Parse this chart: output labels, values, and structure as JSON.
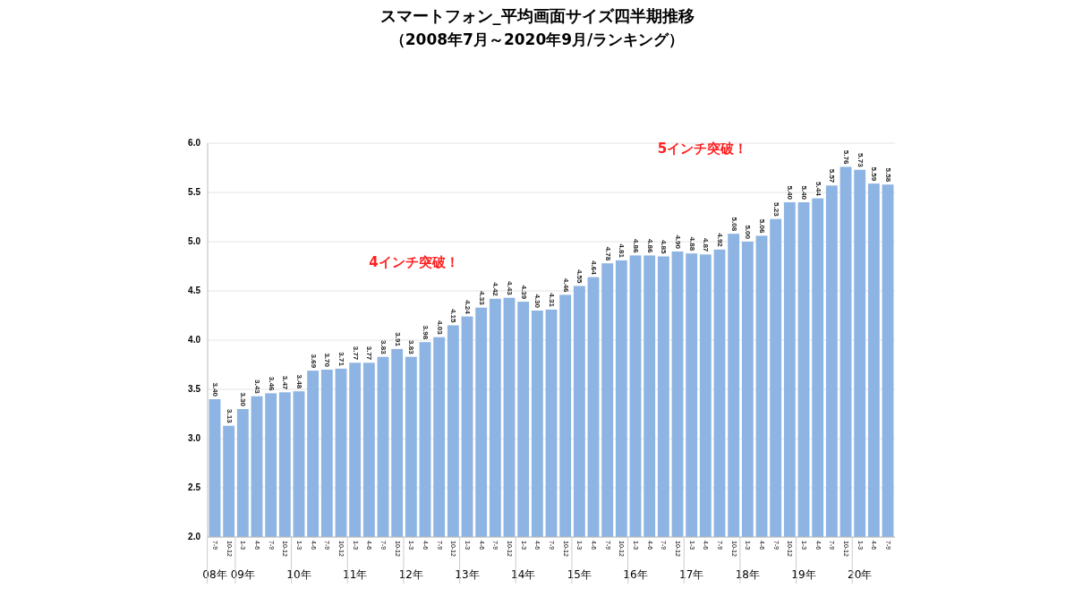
{
  "chart_data": {
    "type": "bar",
    "title": "スマートフォン_平均画面サイズ四半期推移",
    "subtitle": "（2008年7月～2020年9月/ランキング）",
    "categories": [
      "7-9\n08年",
      "10-12",
      "1-3\n09年",
      "4-6",
      "7-9",
      "10-12",
      "1-3\n10年",
      "4-6",
      "7-9",
      "10-12",
      "1-3\n11年",
      "4-6",
      "7-9",
      "10-12",
      "1-3\n12年",
      "4-6",
      "7-9",
      "10-12",
      "1-3\n13年",
      "4-6",
      "7-9",
      "10-12",
      "1-3\n14年",
      "4-6",
      "7-9",
      "10-12",
      "1-3\n15年",
      "4-6",
      "7-9",
      "10-12",
      "1-3\n16年",
      "4-6",
      "7-9",
      "10-12",
      "1-3\n17年",
      "4-6",
      "7-9",
      "10-12",
      "1-3\n18年",
      "4-6",
      "7-9",
      "10-12",
      "1-3\n19年",
      "4-6",
      "7-9",
      "10-12",
      "1-3\n20年",
      "4-6",
      "7-9"
    ],
    "values": [
      3.4,
      3.13,
      3.3,
      3.43,
      3.46,
      3.47,
      3.48,
      3.69,
      3.7,
      3.71,
      3.77,
      3.77,
      3.83,
      3.91,
      3.83,
      3.98,
      4.03,
      4.15,
      4.24,
      4.33,
      4.42,
      4.43,
      4.39,
      4.3,
      4.31,
      4.46,
      4.55,
      4.64,
      4.78,
      4.81,
      4.86,
      4.86,
      4.85,
      4.9,
      4.88,
      4.87,
      4.92,
      5.08,
      5.0,
      5.06,
      5.23,
      5.4,
      5.4,
      5.44,
      5.57,
      5.76,
      5.73,
      5.59,
      5.58
    ],
    "color": "#8db4e2",
    "ylim": [
      2,
      6
    ],
    "yticks": [
      {
        "value": 2,
        "label": "2.0"
      },
      {
        "value": 2.5,
        "label": "2.5"
      },
      {
        "value": 3,
        "label": "3.0"
      },
      {
        "value": 3.5,
        "label": "3.5"
      },
      {
        "value": 4,
        "label": "4.0"
      },
      {
        "value": 4.5,
        "label": "4.5"
      },
      {
        "value": 5,
        "label": "5.0"
      },
      {
        "value": 5.5,
        "label": "5.5"
      },
      {
        "value": 6,
        "label": "6.0"
      }
    ],
    "grid": "y",
    "value_labels": [
      "3.40",
      "3.13",
      "3.30",
      "3.43",
      "3.46",
      "3.47",
      "3.48",
      "3.69",
      "3.70",
      "3.71",
      "3.77",
      "3.77",
      "3.83",
      "3.91",
      "3.83",
      "3.98",
      "4.03",
      "4.15",
      "4.24",
      "4.33",
      "4.42",
      "4.43",
      "4.39",
      "4.30",
      "4.31",
      "4.46",
      "4.55",
      "4.64",
      "4.78",
      "4.81",
      "4.86",
      "4.86",
      "4.85",
      "4.90",
      "4.88",
      "4.87",
      "4.92",
      "5.08",
      "5.00",
      "5.06",
      "5.23",
      "5.40",
      "5.40",
      "5.44",
      "5.57",
      "5.76",
      "5.73",
      "5.59",
      "5.58"
    ],
    "annotations": [
      "4インチ突破！",
      "5インチ突破！"
    ]
  }
}
